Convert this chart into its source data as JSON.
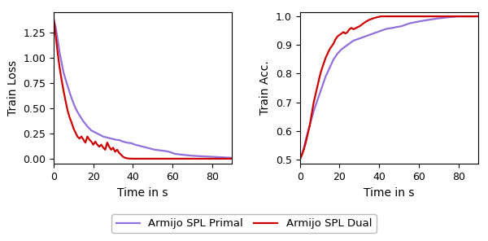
{
  "primal_color": "#9370DB",
  "dual_color": "#CC0000",
  "primal_label": "Armijo SPL Primal",
  "dual_label": "Armijo SPL Dual",
  "loss_xlabel": "Time in s",
  "loss_ylabel": "Train Loss",
  "acc_xlabel": "Time in s",
  "acc_ylabel": "Train Acc.",
  "xlim": [
    0,
    90
  ],
  "loss_ylim": [
    -0.05,
    1.45
  ],
  "acc_ylim": [
    0.485,
    1.015
  ],
  "loss_yticks": [
    0.0,
    0.25,
    0.5,
    0.75,
    1.0,
    1.25
  ],
  "acc_yticks": [
    0.5,
    0.6,
    0.7,
    0.8,
    0.9,
    1.0
  ],
  "xticks": [
    0,
    20,
    40,
    60,
    80
  ],
  "line_width": 1.6,
  "primal_loss_x": [
    0,
    1,
    2,
    3,
    5,
    7,
    9,
    11,
    13,
    15,
    17,
    19,
    21,
    23,
    25,
    27,
    29,
    31,
    33,
    35,
    37,
    39,
    41,
    43,
    45,
    47,
    49,
    51,
    53,
    55,
    57,
    59,
    61,
    65,
    70,
    75,
    80,
    85,
    90
  ],
  "primal_loss_y": [
    1.38,
    1.3,
    1.18,
    1.05,
    0.85,
    0.72,
    0.6,
    0.5,
    0.43,
    0.37,
    0.32,
    0.28,
    0.26,
    0.24,
    0.22,
    0.21,
    0.2,
    0.19,
    0.185,
    0.17,
    0.16,
    0.155,
    0.14,
    0.13,
    0.12,
    0.11,
    0.1,
    0.09,
    0.085,
    0.08,
    0.075,
    0.065,
    0.05,
    0.04,
    0.03,
    0.025,
    0.02,
    0.015,
    0.01
  ],
  "dual_loss_x": [
    0,
    1,
    2,
    3,
    4,
    5,
    6,
    7,
    8,
    9,
    10,
    11,
    12,
    13,
    14,
    15,
    16,
    17,
    18,
    19,
    20,
    21,
    22,
    23,
    24,
    25,
    26,
    27,
    28,
    29,
    30,
    31,
    32,
    33,
    34,
    35,
    36,
    37,
    38,
    39,
    40,
    42,
    45,
    48,
    50,
    55,
    60,
    65,
    70,
    75,
    80,
    85,
    90
  ],
  "dual_loss_y": [
    1.38,
    1.22,
    1.05,
    0.9,
    0.78,
    0.67,
    0.57,
    0.48,
    0.41,
    0.36,
    0.3,
    0.26,
    0.22,
    0.2,
    0.22,
    0.19,
    0.16,
    0.22,
    0.19,
    0.17,
    0.14,
    0.17,
    0.14,
    0.12,
    0.14,
    0.11,
    0.09,
    0.16,
    0.12,
    0.09,
    0.11,
    0.07,
    0.09,
    0.06,
    0.04,
    0.02,
    0.01,
    0.005,
    0.003,
    0.002,
    0.001,
    0.001,
    0.001,
    0.001,
    0.001,
    0.001,
    0.001,
    0.001,
    0.001,
    0.001,
    0.001,
    0.001,
    0.001
  ],
  "primal_acc_x": [
    0,
    1,
    2,
    3,
    5,
    7,
    9,
    11,
    13,
    15,
    17,
    19,
    21,
    23,
    25,
    27,
    29,
    31,
    33,
    35,
    37,
    39,
    41,
    43,
    45,
    47,
    49,
    51,
    53,
    55,
    57,
    60,
    65,
    70,
    75,
    80,
    85,
    90
  ],
  "primal_acc_y": [
    0.5,
    0.52,
    0.54,
    0.57,
    0.62,
    0.67,
    0.71,
    0.75,
    0.79,
    0.82,
    0.85,
    0.87,
    0.885,
    0.895,
    0.905,
    0.915,
    0.92,
    0.925,
    0.93,
    0.935,
    0.94,
    0.945,
    0.95,
    0.955,
    0.958,
    0.96,
    0.963,
    0.965,
    0.97,
    0.975,
    0.978,
    0.982,
    0.988,
    0.993,
    0.997,
    1.0,
    1.0,
    1.0
  ],
  "dual_acc_x": [
    0,
    1,
    2,
    3,
    4,
    5,
    6,
    7,
    8,
    9,
    10,
    11,
    12,
    13,
    14,
    15,
    16,
    17,
    18,
    19,
    20,
    21,
    22,
    23,
    24,
    25,
    26,
    27,
    28,
    29,
    30,
    31,
    32,
    33,
    35,
    37,
    39,
    41,
    43,
    45,
    48,
    50,
    55,
    60,
    65,
    70,
    75,
    80,
    85,
    90
  ],
  "dual_acc_y": [
    0.5,
    0.515,
    0.535,
    0.56,
    0.59,
    0.62,
    0.66,
    0.7,
    0.73,
    0.76,
    0.79,
    0.815,
    0.835,
    0.855,
    0.87,
    0.885,
    0.895,
    0.905,
    0.92,
    0.93,
    0.935,
    0.94,
    0.945,
    0.94,
    0.945,
    0.955,
    0.96,
    0.955,
    0.958,
    0.962,
    0.965,
    0.97,
    0.975,
    0.98,
    0.988,
    0.993,
    0.997,
    1.0,
    1.0,
    1.0,
    1.0,
    1.0,
    1.0,
    1.0,
    1.0,
    1.0,
    1.0,
    1.0,
    1.0,
    1.0
  ]
}
